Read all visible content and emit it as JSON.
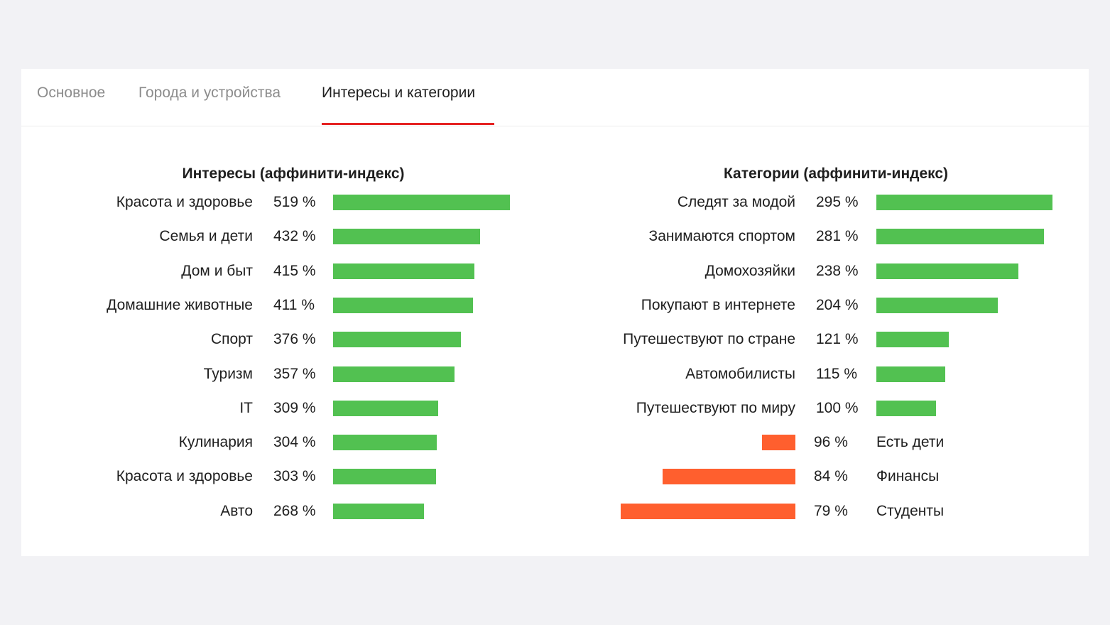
{
  "tabs": [
    {
      "label": "Основное",
      "active": false
    },
    {
      "label": "Города и устройства",
      "active": false
    },
    {
      "label": "Интересы и категории",
      "active": true
    }
  ],
  "colors": {
    "positive": "#52c151",
    "negative": "#ff5f2e",
    "tab_underline": "#e52222"
  },
  "chart_data": [
    {
      "type": "bar",
      "orientation": "horizontal",
      "title": "Интересы (аффинити-индекс)",
      "unit": "%",
      "categories": [
        "Красота и здоровье",
        "Семья и дети",
        "Дом и быт",
        "Домашние животные",
        "Спорт",
        "Туризм",
        "IT",
        "Кулинария",
        "Красота и здоровье",
        "Авто"
      ],
      "values": [
        519,
        432,
        415,
        411,
        376,
        357,
        309,
        304,
        303,
        268
      ],
      "labels": [
        "519 %",
        "432 %",
        "415 %",
        "411 %",
        "376 %",
        "357 %",
        "309 %",
        "304 %",
        "303 %",
        "268 %"
      ]
    },
    {
      "type": "bar",
      "orientation": "horizontal",
      "title": "Категории (аффинити-индекс)",
      "unit": "%",
      "categories": [
        "Следят за модой",
        "Занимаются спортом",
        "Домохозяйки",
        "Покупают в интернете",
        "Путешествуют по стране",
        "Автомобилисты",
        "Путешествуют по миру",
        "Есть дети",
        "Финансы",
        "Студенты"
      ],
      "values": [
        295,
        281,
        238,
        204,
        121,
        115,
        100,
        96,
        84,
        79
      ],
      "labels": [
        "295 %",
        "281 %",
        "238 %",
        "204 %",
        "121 %",
        "115 %",
        "100 %",
        "96 %",
        "84 %",
        "79 %"
      ]
    }
  ]
}
